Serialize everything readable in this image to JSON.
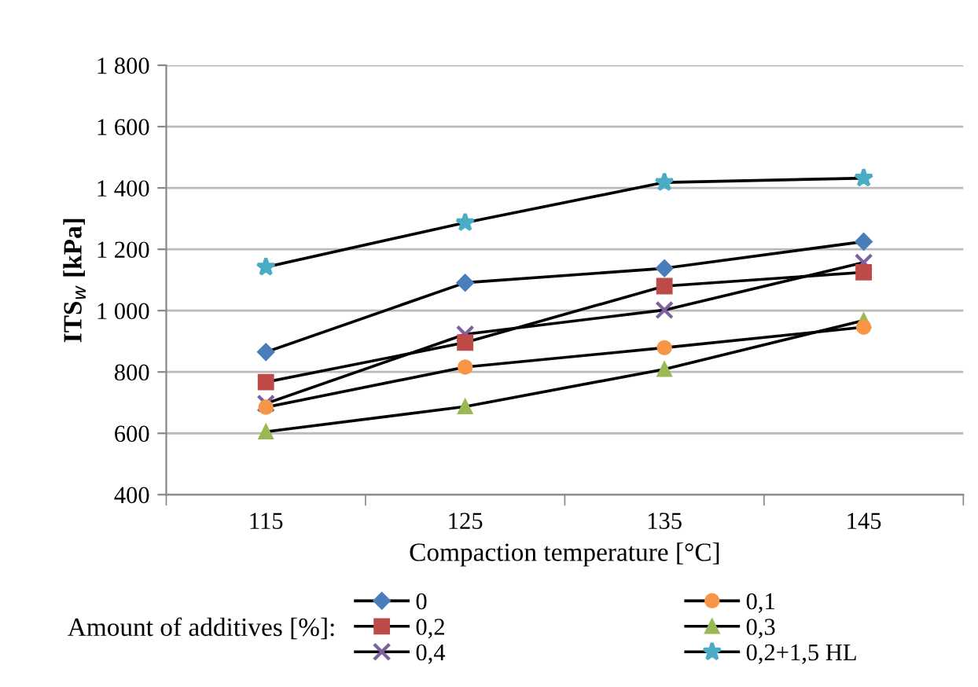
{
  "chart_data": {
    "type": "line",
    "xlabel": "Compaction temperature [°C]",
    "ylabel": "ITS$_{w}$ [kPa]",
    "legend_title": "Amount of additives [%]:",
    "categories": [
      "115",
      "125",
      "135",
      "145"
    ],
    "series": [
      {
        "name": "0",
        "color": "#4a7ebb",
        "marker": "diamond",
        "values": [
          865,
          1091,
          1138,
          1225
        ]
      },
      {
        "name": "0,1",
        "color": "#f79646",
        "marker": "circle",
        "values": [
          685,
          816,
          879,
          946
        ]
      },
      {
        "name": "0,2",
        "color": "#be4b48",
        "marker": "square",
        "values": [
          767,
          896,
          1080,
          1125
        ]
      },
      {
        "name": "0,3",
        "color": "#98b954",
        "marker": "triangle",
        "values": [
          605,
          687,
          809,
          968
        ]
      },
      {
        "name": "0,4",
        "color": "#7d60a0",
        "marker": "cross",
        "values": [
          697,
          923,
          1002,
          1157
        ]
      },
      {
        "name": "0,2+1,5 HL",
        "color": "#4bacc6",
        "marker": "star",
        "values": [
          1142,
          1287,
          1418,
          1432
        ]
      }
    ],
    "ylim": [
      400,
      1800
    ],
    "yticks": [
      400,
      600,
      800,
      {
        "value": 1000,
        "label": "1 000"
      },
      {
        "value": 1200,
        "label": "1 200"
      },
      {
        "value": 1400,
        "label": "1 400"
      },
      {
        "value": 1600,
        "label": "1 600"
      },
      {
        "value": 1800,
        "label": "1 800"
      }
    ],
    "grid": "y",
    "legend": "bottom",
    "line_style": "solid"
  }
}
